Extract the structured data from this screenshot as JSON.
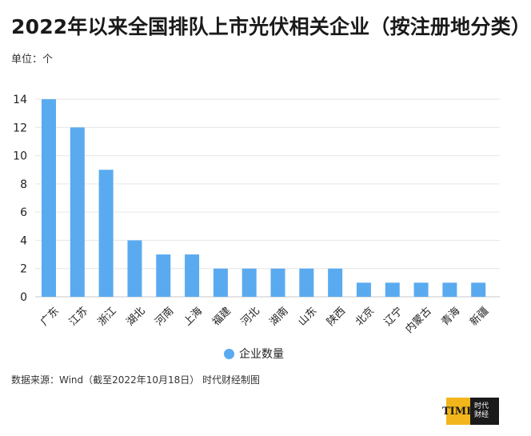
{
  "title": "2022年以来全国排队上市光伏相关企业（按注册地分类）",
  "unit_label": "单位：个",
  "source": "数据来源：Wind（截至2022年10月18日） 时代财经制图",
  "logo": {
    "time_text": "TIME",
    "cn_text": "时代财经"
  },
  "colors": {
    "bar": "#5aaaf0",
    "grid": "#e6e6e6",
    "axis": "#c8c8c8"
  },
  "chart_data": {
    "type": "bar",
    "title": "2022年以来全国排队上市光伏相关企业（按注册地分类）",
    "ylabel": "单位：个",
    "xlabel": "",
    "categories": [
      "广东",
      "江苏",
      "浙江",
      "湖北",
      "河南",
      "上海",
      "福建",
      "河北",
      "湖南",
      "山东",
      "陕西",
      "北京",
      "辽宁",
      "内蒙古",
      "青海",
      "新疆"
    ],
    "series": [
      {
        "name": "企业数量",
        "values": [
          14,
          12,
          9,
          4,
          3,
          3,
          2,
          2,
          2,
          2,
          2,
          1,
          1,
          1,
          1,
          1
        ]
      }
    ],
    "ylim": [
      0,
      14
    ],
    "yticks": [
      0,
      2,
      4,
      6,
      8,
      10,
      12,
      14
    ],
    "grid": true,
    "legend": "bottom-center"
  }
}
